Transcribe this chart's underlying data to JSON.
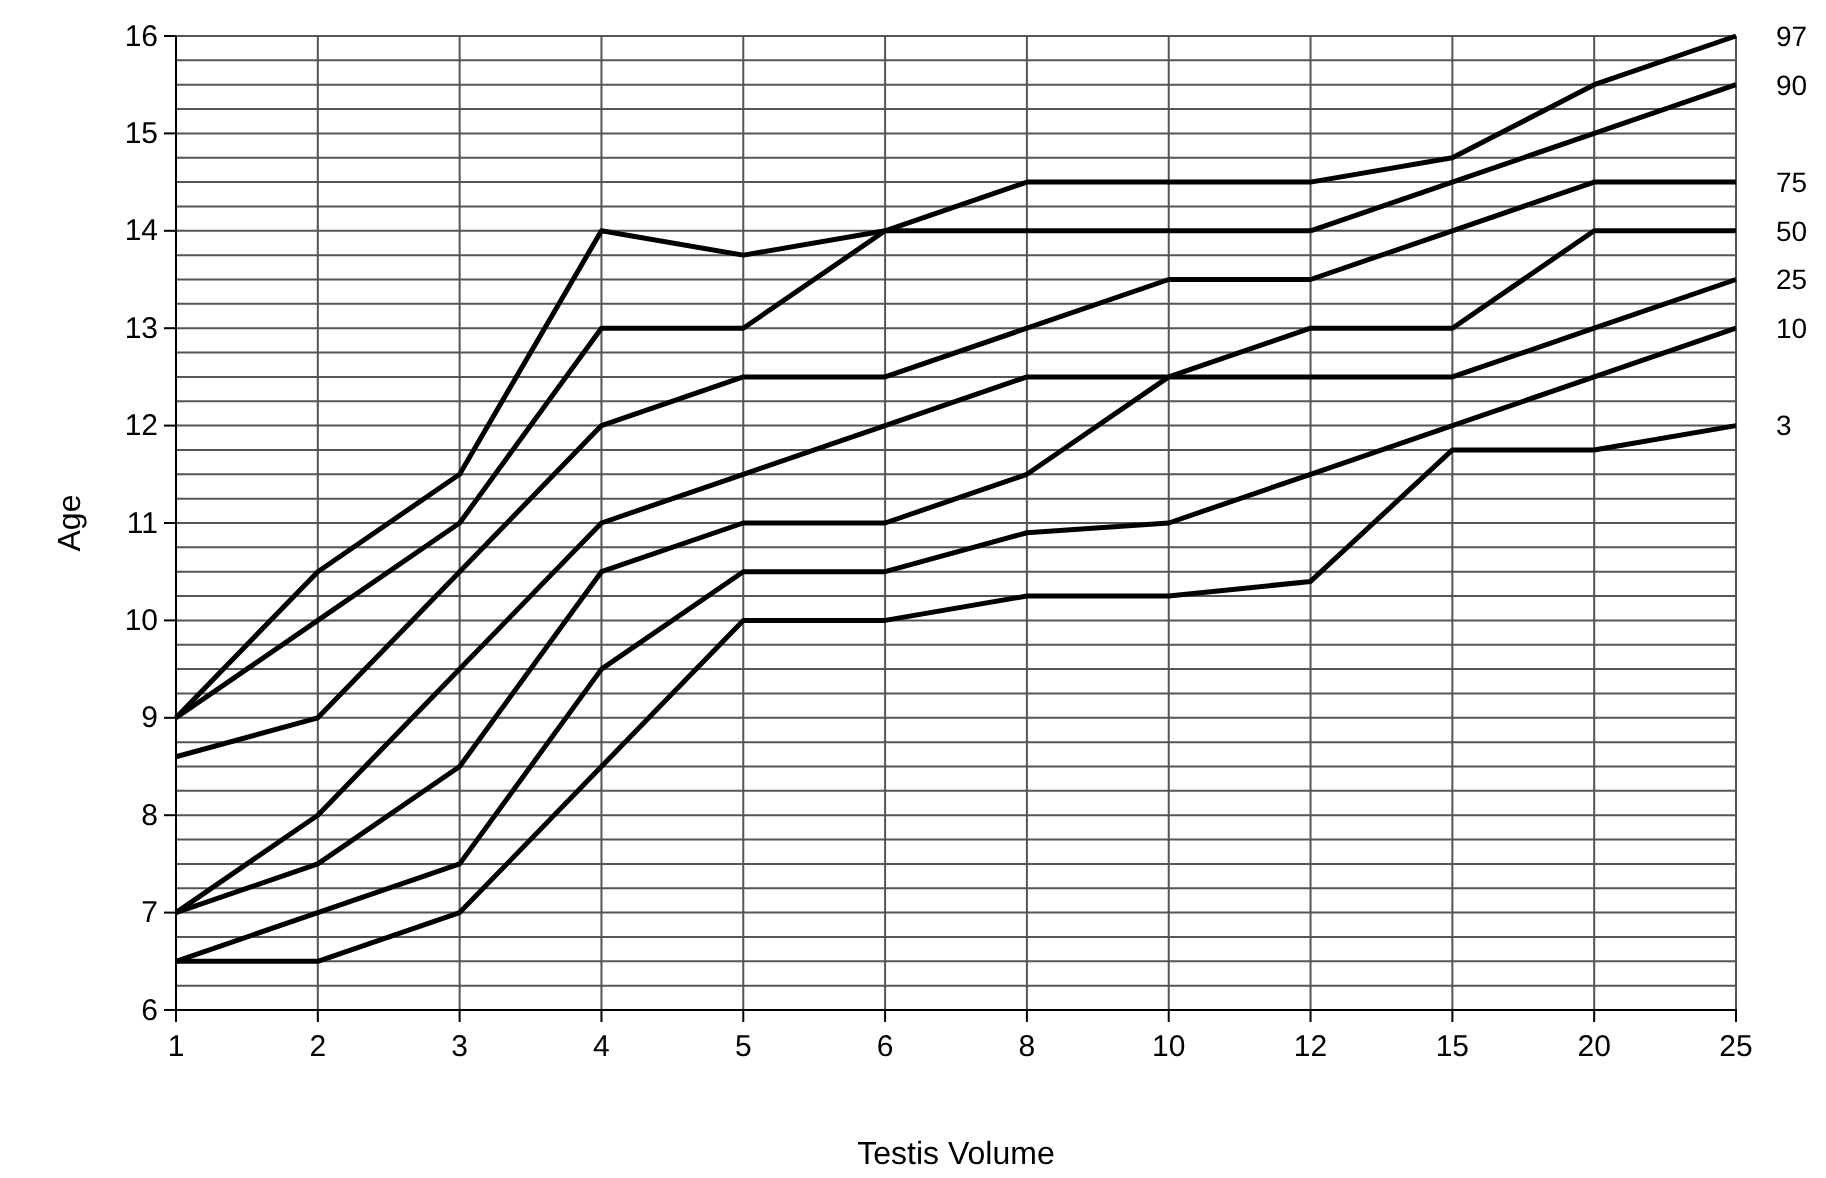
{
  "chart_data": {
    "type": "line",
    "xlabel": "Testis Volume",
    "ylabel": "Age",
    "categories": [
      "1",
      "2",
      "3",
      "4",
      "5",
      "6",
      "8",
      "10",
      "12",
      "15",
      "20",
      "25"
    ],
    "ylim": [
      6,
      16
    ],
    "yticks": [
      6,
      {
        "value": 6.25,
        "label": null
      },
      {
        "value": 6.5,
        "label": null
      },
      {
        "value": 6.75,
        "label": null
      },
      7,
      {
        "value": 7.25,
        "label": null
      },
      {
        "value": 7.5,
        "label": null
      },
      {
        "value": 7.75,
        "label": null
      },
      8,
      {
        "value": 8.25,
        "label": null
      },
      {
        "value": 8.5,
        "label": null
      },
      {
        "value": 8.75,
        "label": null
      },
      9,
      {
        "value": 9.25,
        "label": null
      },
      {
        "value": 9.5,
        "label": null
      },
      {
        "value": 9.75,
        "label": null
      },
      10,
      {
        "value": 10.25,
        "label": null
      },
      {
        "value": 10.5,
        "label": null
      },
      {
        "value": 10.75,
        "label": null
      },
      11,
      {
        "value": 11.25,
        "label": null
      },
      {
        "value": 11.5,
        "label": null
      },
      {
        "value": 11.75,
        "label": null
      },
      12,
      {
        "value": 12.25,
        "label": null
      },
      {
        "value": 12.5,
        "label": null
      },
      {
        "value": 12.75,
        "label": null
      },
      13,
      {
        "value": 13.25,
        "label": null
      },
      {
        "value": 13.5,
        "label": null
      },
      {
        "value": 13.75,
        "label": null
      },
      14,
      {
        "value": 14.25,
        "label": null
      },
      {
        "value": 14.5,
        "label": null
      },
      {
        "value": 14.75,
        "label": null
      },
      15,
      {
        "value": 15.25,
        "label": null
      },
      {
        "value": 15.5,
        "label": null
      },
      {
        "value": 15.75,
        "label": null
      },
      16
    ],
    "grid": true,
    "legend": false,
    "marker": "none",
    "line_style": "solid",
    "series": [
      {
        "name": "97",
        "color": "#000000",
        "values": [
          9,
          10.5,
          11.5,
          14,
          13.75,
          14,
          14.5,
          14.5,
          14.5,
          14.75,
          15.5,
          16
        ]
      },
      {
        "name": "90",
        "color": "#000000",
        "values": [
          9,
          10,
          11,
          13,
          13,
          14,
          14,
          14,
          14,
          14.5,
          15,
          15.5
        ]
      },
      {
        "name": "75",
        "color": "#000000",
        "values": [
          8.6,
          9,
          10.5,
          12,
          12.5,
          12.5,
          13,
          13.5,
          13.5,
          14,
          14.5,
          14.5
        ]
      },
      {
        "name": "50",
        "color": "#000000",
        "values": [
          7,
          8,
          9.5,
          11,
          11.5,
          12,
          12.5,
          12.5,
          13,
          13,
          14,
          14
        ]
      },
      {
        "name": "25",
        "color": "#000000",
        "values": [
          7,
          7.5,
          8.5,
          10.5,
          11,
          11,
          11.5,
          12.5,
          12.5,
          12.5,
          13,
          13.5
        ]
      },
      {
        "name": "10",
        "color": "#000000",
        "values": [
          6.5,
          7,
          7.5,
          9.5,
          10.5,
          10.5,
          10.9,
          11,
          11.5,
          12,
          12.5,
          13
        ]
      },
      {
        "name": "3",
        "color": "#000000",
        "values": [
          6.5,
          6.5,
          7,
          8.5,
          10,
          10,
          10.25,
          10.25,
          10.4,
          11.75,
          11.75,
          12
        ]
      }
    ]
  }
}
